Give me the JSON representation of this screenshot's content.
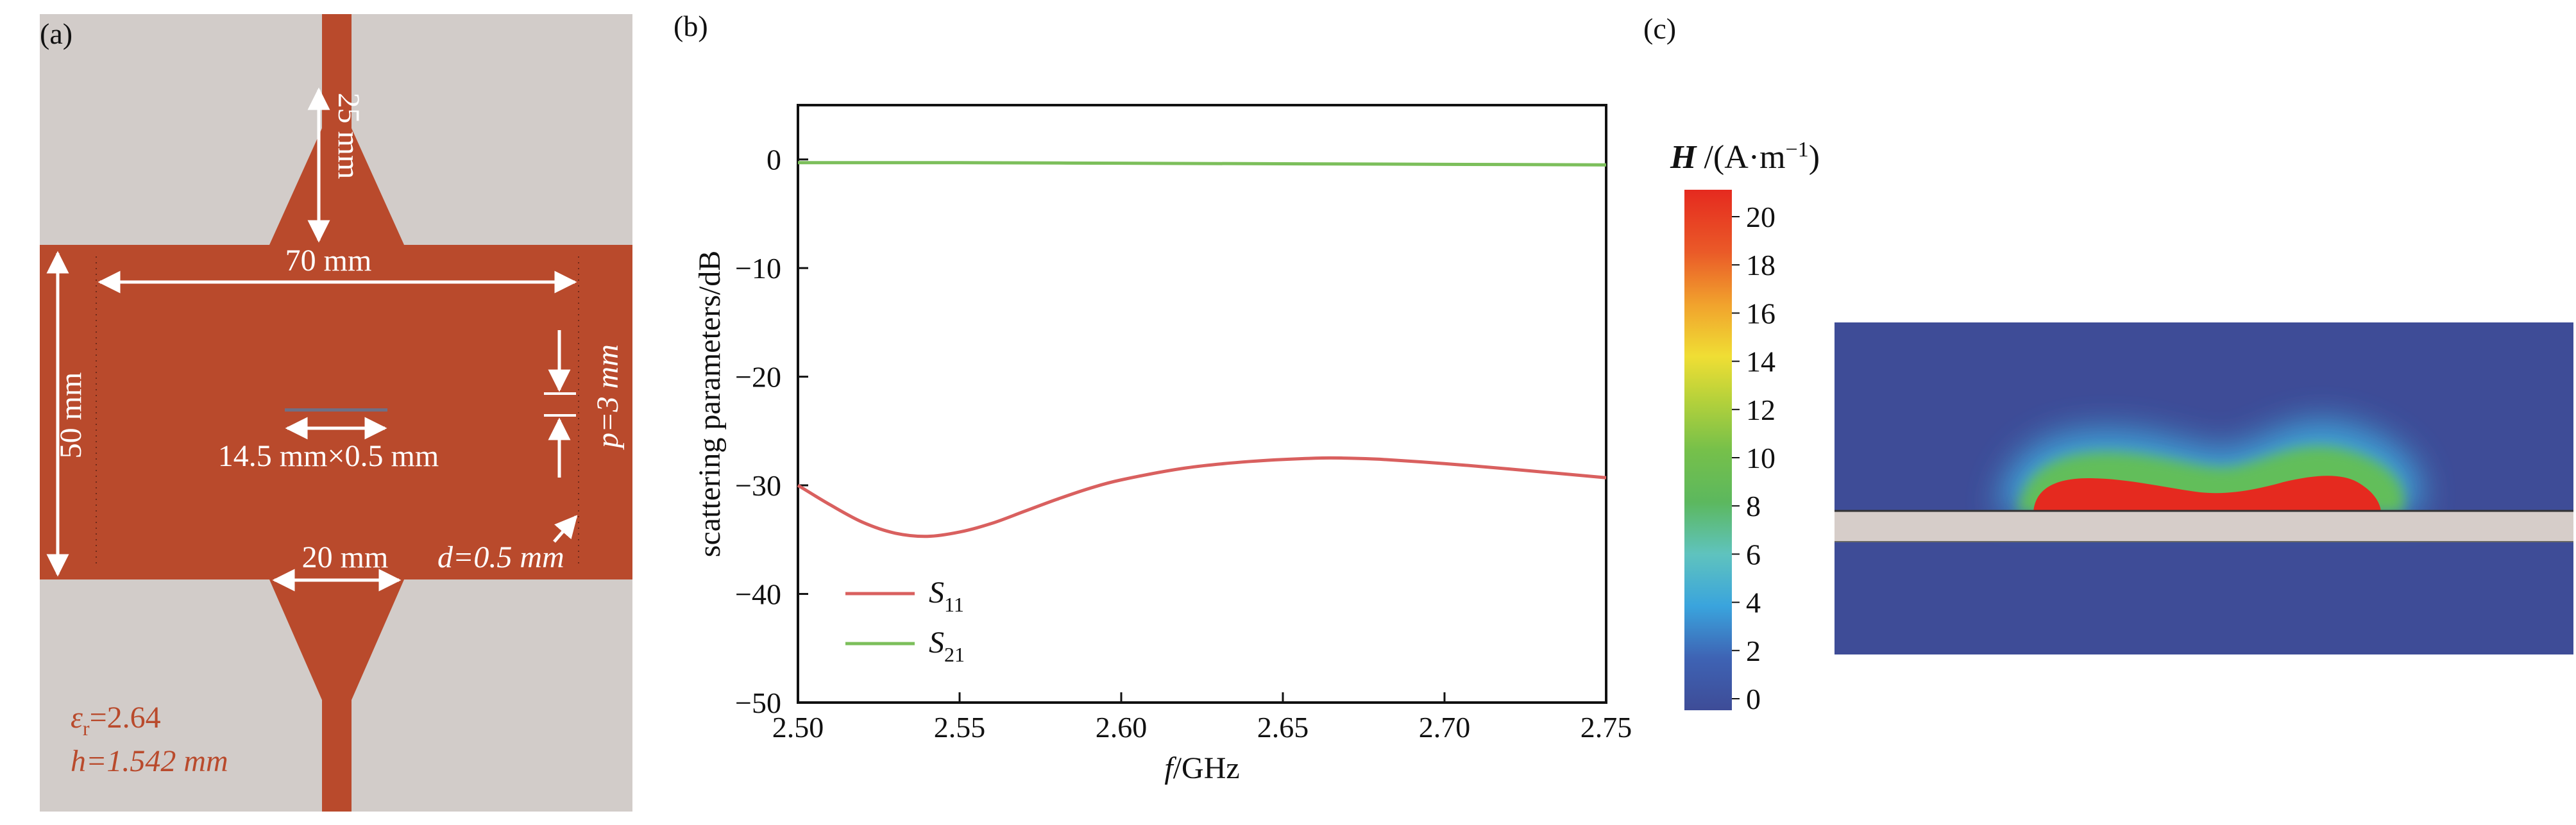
{
  "panel_a": {
    "label": "(a)",
    "dim_taper_length": "25 mm",
    "dim_width": "70 mm",
    "dim_height": "50 mm",
    "dim_slot": "14.5 mm×0.5 mm",
    "dim_period": "p=3 mm",
    "dim_port_width": "20 mm",
    "dim_diameter": "d=0.5 mm",
    "eps_symbol": "ε",
    "eps_sub": "r",
    "eps_value": "=2.64",
    "h_label": "h=1.542 mm",
    "colors": {
      "metal": "#B94A2C",
      "substrate": "#D2CCC9",
      "label": "#B94A2C"
    }
  },
  "panel_b": {
    "label": "(b)"
  },
  "panel_c": {
    "label": "(c)",
    "colorbar_title_symbol": "H",
    "colorbar_title_unit": "/(A·m",
    "colorbar_title_exp": "−1",
    "colorbar_title_close": ")",
    "colorbar_ticks": [
      "20",
      "18",
      "16",
      "14",
      "12",
      "10",
      "8",
      "6",
      "4",
      "2",
      "0"
    ],
    "colors": {
      "background": "#3E4C97",
      "hot": "#E52A1F",
      "slab": "#D6CDC9"
    }
  },
  "chart_data": {
    "type": "line",
    "ylabel": "scattering parameters/dB",
    "xlabel_symbol": "f",
    "xlabel_unit": "/GHz",
    "xlim": [
      2.5,
      2.75
    ],
    "ylim": [
      -50,
      5
    ],
    "x_ticks": [
      "2.50",
      "2.55",
      "2.60",
      "2.65",
      "2.70",
      "2.75"
    ],
    "y_ticks": [
      "0",
      "−10",
      "−20",
      "−30",
      "−40",
      "−50"
    ],
    "y_tick_values": [
      0,
      -10,
      -20,
      -30,
      -40,
      -50
    ],
    "x_tick_values": [
      2.5,
      2.55,
      2.6,
      2.65,
      2.7,
      2.75
    ],
    "legend_position": "bottom-left",
    "series": [
      {
        "name": "S11",
        "name_main": "S",
        "name_sub": "11",
        "color": "#D9605F",
        "x": [
          2.5,
          2.51,
          2.52,
          2.53,
          2.54,
          2.55,
          2.56,
          2.57,
          2.58,
          2.59,
          2.6,
          2.62,
          2.64,
          2.66,
          2.67,
          2.68,
          2.7,
          2.72,
          2.75
        ],
        "y": [
          -30.0,
          -31.8,
          -33.4,
          -34.4,
          -34.7,
          -34.3,
          -33.5,
          -32.4,
          -31.3,
          -30.3,
          -29.5,
          -28.4,
          -27.8,
          -27.5,
          -27.5,
          -27.6,
          -28.0,
          -28.5,
          -29.3
        ]
      },
      {
        "name": "S21",
        "name_main": "S",
        "name_sub": "21",
        "color": "#7CBF5B",
        "x": [
          2.5,
          2.55,
          2.6,
          2.65,
          2.7,
          2.75
        ],
        "y": [
          -0.3,
          -0.3,
          -0.35,
          -0.4,
          -0.45,
          -0.5
        ]
      }
    ]
  }
}
